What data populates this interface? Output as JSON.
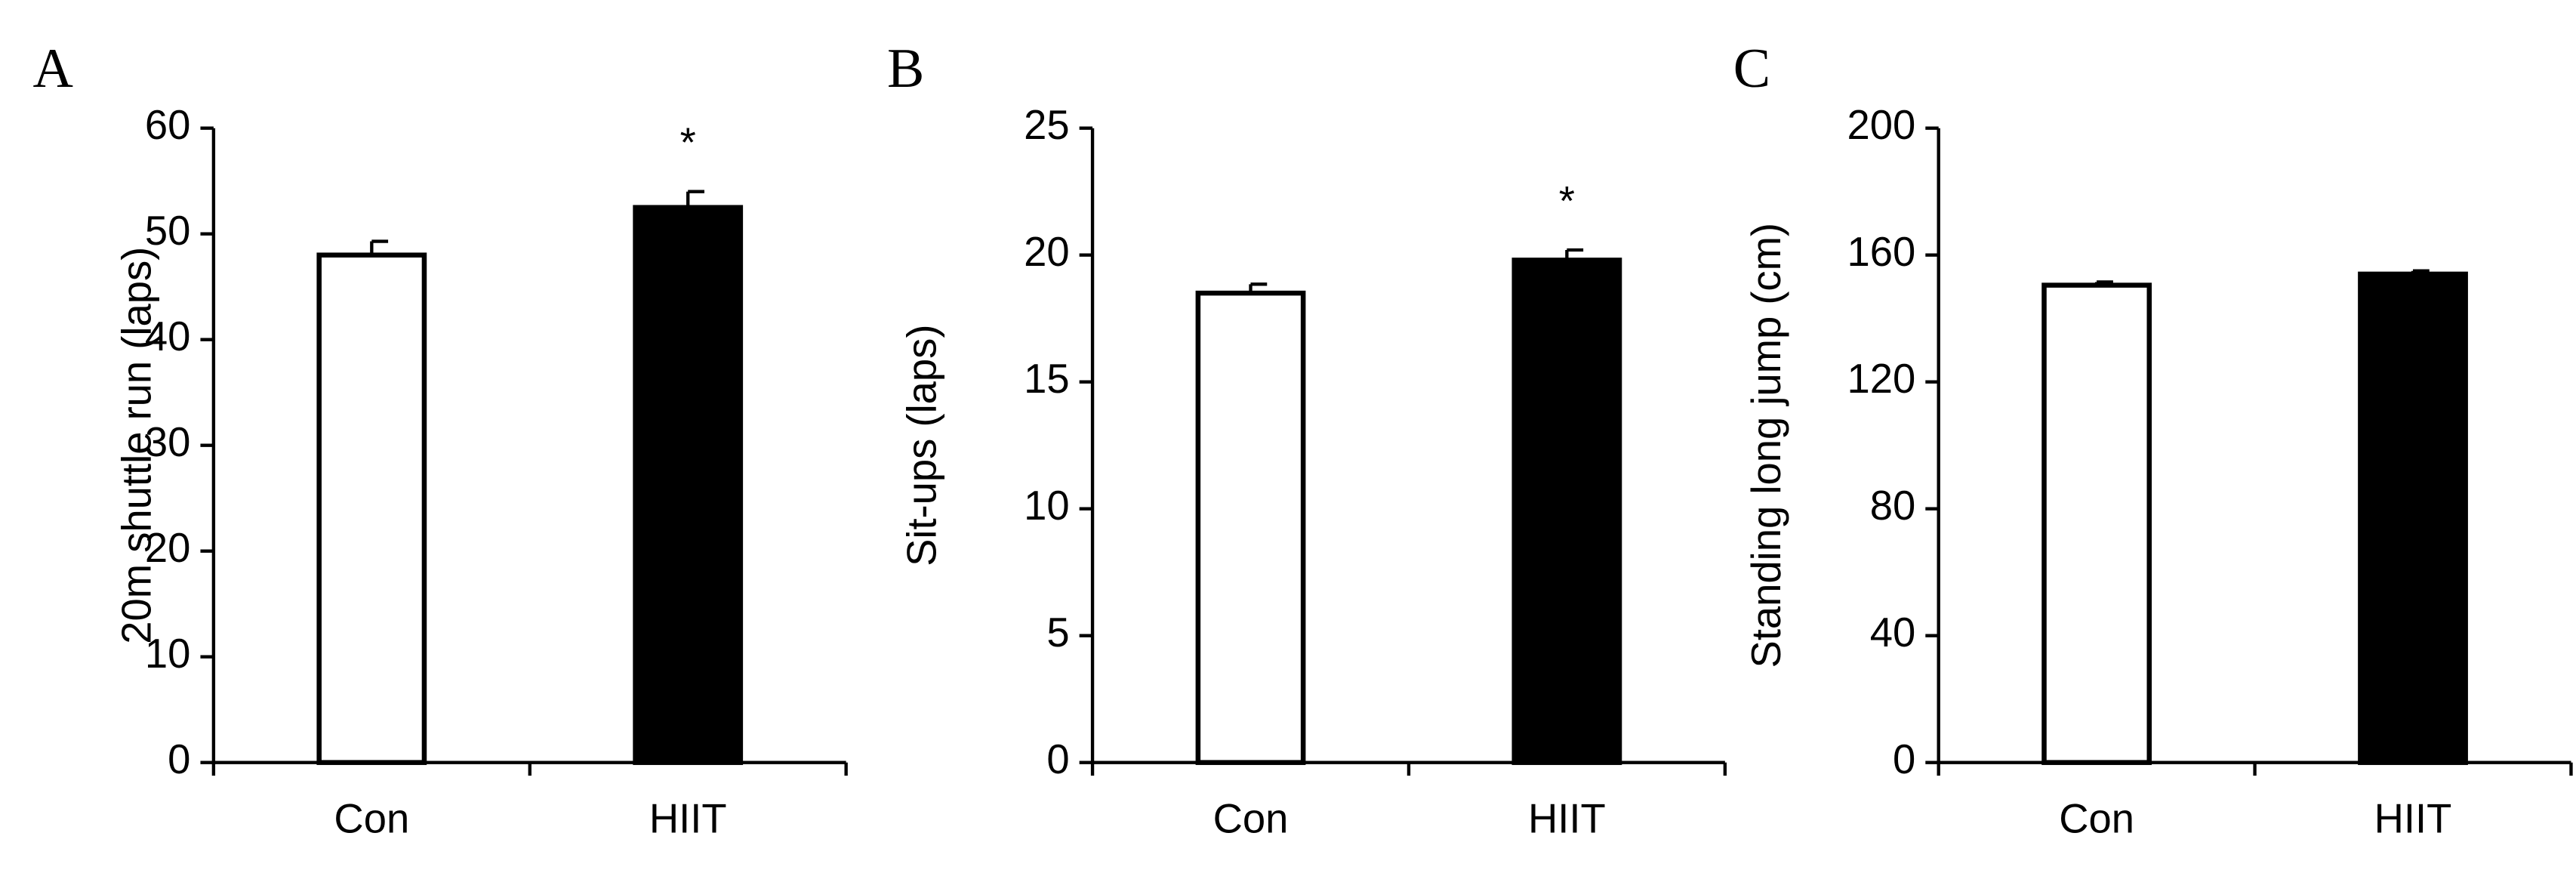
{
  "chart_data": [
    {
      "type": "bar",
      "panel_label": "A",
      "ylabel": "20m shuttle run (laps)",
      "categories": [
        "Con",
        "HIIT"
      ],
      "values": [
        48,
        52.5
      ],
      "errors": [
        1.3,
        1.5
      ],
      "colors": [
        "#ffffff",
        "#000000"
      ],
      "ylim": [
        0,
        60
      ],
      "yticks": [
        0,
        10,
        20,
        30,
        40,
        50,
        60
      ],
      "annotations": [
        {
          "text": "*",
          "x": "HIIT"
        }
      ]
    },
    {
      "type": "bar",
      "panel_label": "B",
      "ylabel": "Sit-ups (laps)",
      "categories": [
        "Con",
        "HIIT"
      ],
      "values": [
        18.5,
        19.8
      ],
      "errors": [
        0.35,
        0.4
      ],
      "colors": [
        "#ffffff",
        "#000000"
      ],
      "ylim": [
        0,
        25
      ],
      "yticks": [
        0,
        5,
        10,
        15,
        20,
        25
      ],
      "annotations": [
        {
          "text": "*",
          "x": "HIIT"
        }
      ]
    },
    {
      "type": "bar",
      "panel_label": "C",
      "ylabel": "Standing long jump (cm)",
      "categories": [
        "Con",
        "HIIT"
      ],
      "values": [
        150.5,
        154
      ],
      "errors": [
        1,
        1
      ],
      "colors": [
        "#ffffff",
        "#000000"
      ],
      "ylim": [
        0,
        200
      ],
      "yticks": [
        0,
        40,
        80,
        120,
        160,
        200
      ]
    }
  ]
}
